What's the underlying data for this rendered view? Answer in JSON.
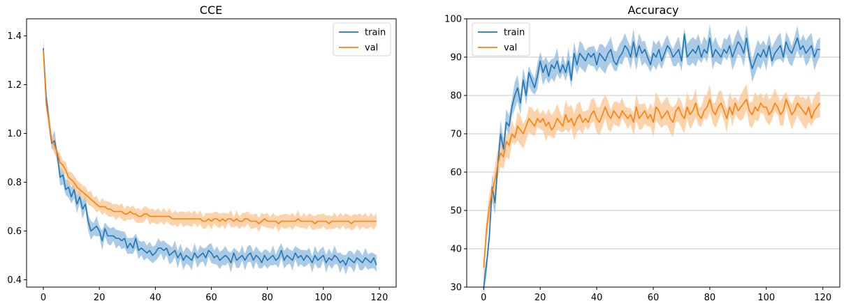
{
  "chart_data": [
    {
      "type": "line",
      "title": "CCE",
      "xlabel": "",
      "ylabel": "",
      "xlim": [
        -6,
        126
      ],
      "ylim": [
        0.37,
        1.47
      ],
      "xticks": [
        0,
        20,
        40,
        60,
        80,
        100,
        120
      ],
      "yticks": [
        0.4,
        0.6,
        0.8,
        1.0,
        1.2,
        1.4
      ],
      "ytick_labels": [
        "0.4",
        "0.6",
        "0.8",
        "1.0",
        "1.2",
        "1.4"
      ],
      "grid": false,
      "legend": "top-right",
      "x": [
        0,
        1,
        2,
        3,
        4,
        5,
        6,
        7,
        8,
        9,
        10,
        11,
        12,
        13,
        14,
        15,
        16,
        17,
        18,
        19,
        20,
        21,
        22,
        23,
        24,
        25,
        26,
        27,
        28,
        29,
        30,
        31,
        32,
        33,
        34,
        35,
        36,
        37,
        38,
        39,
        40,
        41,
        42,
        43,
        44,
        45,
        46,
        47,
        48,
        49,
        50,
        51,
        52,
        53,
        54,
        55,
        56,
        57,
        58,
        59,
        60,
        61,
        62,
        63,
        64,
        65,
        66,
        67,
        68,
        69,
        70,
        71,
        72,
        73,
        74,
        75,
        76,
        77,
        78,
        79,
        80,
        81,
        82,
        83,
        84,
        85,
        86,
        87,
        88,
        89,
        90,
        91,
        92,
        93,
        94,
        95,
        96,
        97,
        98,
        99,
        100,
        101,
        102,
        103,
        104,
        105,
        106,
        107,
        108,
        109,
        110,
        111,
        112,
        113,
        114,
        115,
        116,
        117,
        118,
        119
      ],
      "series": [
        {
          "name": "train",
          "color": "#1f77b4",
          "band_color": "#8fb8dc",
          "values": [
            1.35,
            1.15,
            1.05,
            0.96,
            0.97,
            0.91,
            0.82,
            0.83,
            0.77,
            0.78,
            0.74,
            0.77,
            0.71,
            0.74,
            0.69,
            0.71,
            0.64,
            0.6,
            0.61,
            0.62,
            0.6,
            0.56,
            0.61,
            0.58,
            0.58,
            0.58,
            0.57,
            0.57,
            0.56,
            0.57,
            0.53,
            0.55,
            0.53,
            0.57,
            0.52,
            0.53,
            0.52,
            0.51,
            0.52,
            0.5,
            0.51,
            0.53,
            0.53,
            0.52,
            0.53,
            0.5,
            0.51,
            0.52,
            0.49,
            0.51,
            0.48,
            0.5,
            0.49,
            0.48,
            0.51,
            0.49,
            0.5,
            0.51,
            0.49,
            0.52,
            0.51,
            0.49,
            0.5,
            0.48,
            0.49,
            0.5,
            0.49,
            0.47,
            0.51,
            0.48,
            0.49,
            0.5,
            0.48,
            0.5,
            0.51,
            0.48,
            0.5,
            0.49,
            0.47,
            0.5,
            0.48,
            0.49,
            0.5,
            0.48,
            0.49,
            0.52,
            0.48,
            0.5,
            0.49,
            0.48,
            0.51,
            0.49,
            0.5,
            0.48,
            0.5,
            0.49,
            0.47,
            0.5,
            0.48,
            0.49,
            0.5,
            0.47,
            0.49,
            0.48,
            0.5,
            0.49,
            0.47,
            0.48,
            0.46,
            0.49,
            0.48,
            0.47,
            0.49,
            0.48,
            0.47,
            0.49,
            0.48,
            0.47,
            0.49,
            0.46
          ],
          "band_half_width": 0.03
        },
        {
          "name": "val",
          "color": "#ff7f0e",
          "band_color": "#fcc48f",
          "values": [
            1.34,
            1.12,
            1.05,
            0.97,
            0.95,
            0.92,
            0.88,
            0.87,
            0.85,
            0.82,
            0.81,
            0.8,
            0.78,
            0.77,
            0.76,
            0.75,
            0.74,
            0.73,
            0.72,
            0.71,
            0.7,
            0.7,
            0.7,
            0.69,
            0.69,
            0.68,
            0.68,
            0.68,
            0.68,
            0.67,
            0.67,
            0.68,
            0.67,
            0.67,
            0.66,
            0.66,
            0.67,
            0.67,
            0.66,
            0.66,
            0.66,
            0.66,
            0.66,
            0.66,
            0.66,
            0.66,
            0.65,
            0.65,
            0.65,
            0.65,
            0.65,
            0.65,
            0.65,
            0.65,
            0.65,
            0.65,
            0.65,
            0.64,
            0.64,
            0.65,
            0.64,
            0.65,
            0.65,
            0.64,
            0.65,
            0.64,
            0.65,
            0.65,
            0.64,
            0.65,
            0.64,
            0.64,
            0.65,
            0.65,
            0.64,
            0.64,
            0.64,
            0.63,
            0.64,
            0.65,
            0.64,
            0.64,
            0.64,
            0.64,
            0.63,
            0.64,
            0.64,
            0.64,
            0.64,
            0.64,
            0.64,
            0.65,
            0.64,
            0.64,
            0.64,
            0.64,
            0.64,
            0.63,
            0.64,
            0.64,
            0.64,
            0.64,
            0.63,
            0.64,
            0.64,
            0.64,
            0.64,
            0.64,
            0.64,
            0.64,
            0.63,
            0.64,
            0.64,
            0.64,
            0.64,
            0.64,
            0.64,
            0.64,
            0.64,
            0.64
          ],
          "band_half_width": 0.025
        }
      ]
    },
    {
      "type": "line",
      "title": "Accuracy",
      "xlabel": "",
      "ylabel": "",
      "xlim": [
        -6,
        126
      ],
      "ylim": [
        30,
        100
      ],
      "xticks": [
        0,
        20,
        40,
        60,
        80,
        100,
        120
      ],
      "yticks": [
        30,
        40,
        50,
        60,
        70,
        80,
        90,
        100
      ],
      "ytick_labels": [
        "30",
        "40",
        "50",
        "60",
        "70",
        "80",
        "90",
        "100"
      ],
      "grid": true,
      "grid_axis": "y",
      "legend": "top-left",
      "x": [
        0,
        1,
        2,
        3,
        4,
        5,
        6,
        7,
        8,
        9,
        10,
        11,
        12,
        13,
        14,
        15,
        16,
        17,
        18,
        19,
        20,
        21,
        22,
        23,
        24,
        25,
        26,
        27,
        28,
        29,
        30,
        31,
        32,
        33,
        34,
        35,
        36,
        37,
        38,
        39,
        40,
        41,
        42,
        43,
        44,
        45,
        46,
        47,
        48,
        49,
        50,
        51,
        52,
        53,
        54,
        55,
        56,
        57,
        58,
        59,
        60,
        61,
        62,
        63,
        64,
        65,
        66,
        67,
        68,
        69,
        70,
        71,
        72,
        73,
        74,
        75,
        76,
        77,
        78,
        79,
        80,
        81,
        82,
        83,
        84,
        85,
        86,
        87,
        88,
        89,
        90,
        91,
        92,
        93,
        94,
        95,
        96,
        97,
        98,
        99,
        100,
        101,
        102,
        103,
        104,
        105,
        106,
        107,
        108,
        109,
        110,
        111,
        112,
        113,
        114,
        115,
        116,
        117,
        118,
        119
      ],
      "series": [
        {
          "name": "train",
          "color": "#1f77b4",
          "band_color": "#8fb8dc",
          "values": [
            30,
            36,
            43,
            56,
            52,
            62,
            70,
            66,
            73,
            72,
            77,
            80,
            82,
            78,
            84,
            80,
            86,
            84,
            82,
            85,
            89,
            86,
            88,
            85,
            88,
            87,
            89,
            86,
            88,
            86,
            89,
            84,
            91,
            88,
            91,
            90,
            89,
            91,
            90,
            91,
            88,
            91,
            90,
            89,
            91,
            92,
            89,
            88,
            90,
            91,
            93,
            92,
            90,
            94,
            90,
            93,
            91,
            92,
            90,
            88,
            91,
            90,
            92,
            89,
            91,
            93,
            92,
            90,
            91,
            92,
            89,
            96,
            90,
            91,
            92,
            91,
            93,
            90,
            92,
            91,
            95,
            90,
            92,
            91,
            90,
            92,
            91,
            93,
            90,
            92,
            94,
            93,
            91,
            95,
            90,
            87,
            89,
            91,
            90,
            92,
            90,
            93,
            89,
            91,
            92,
            93,
            90,
            94,
            92,
            91,
            93,
            95,
            92,
            93,
            91,
            92,
            93,
            90,
            92,
            92
          ],
          "band_half_width": 2.5
        },
        {
          "name": "val",
          "color": "#ff7f0e",
          "band_color": "#fcc48f",
          "values": [
            35,
            45,
            51,
            55,
            58,
            62,
            65,
            64,
            68,
            67,
            70,
            69,
            72,
            71,
            70,
            72,
            74,
            73,
            72,
            74,
            73,
            74,
            72,
            73,
            71,
            72,
            74,
            73,
            72,
            75,
            73,
            74,
            72,
            74,
            75,
            73,
            74,
            73,
            75,
            76,
            74,
            73,
            75,
            77,
            75,
            74,
            76,
            75,
            74,
            76,
            75,
            74,
            75,
            73,
            77,
            74,
            75,
            76,
            74,
            75,
            73,
            77,
            76,
            74,
            75,
            76,
            74,
            73,
            76,
            77,
            75,
            74,
            77,
            75,
            76,
            78,
            75,
            74,
            76,
            77,
            79,
            76,
            75,
            77,
            78,
            76,
            74,
            77,
            75,
            78,
            76,
            77,
            78,
            79,
            76,
            75,
            77,
            76,
            78,
            77,
            77,
            75,
            76,
            78,
            77,
            75,
            76,
            79,
            77,
            75,
            76,
            78,
            77,
            76,
            75,
            77,
            74,
            76,
            77,
            78
          ],
          "band_half_width": 2.8
        }
      ]
    }
  ]
}
